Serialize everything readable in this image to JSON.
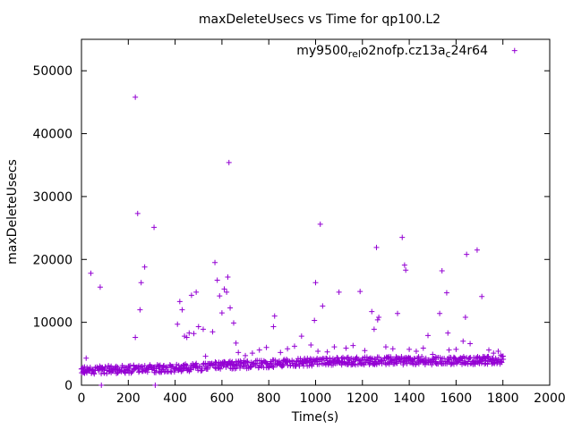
{
  "chart_data": {
    "type": "scatter",
    "title": "maxDeleteUsecs vs Time for qp100.L2",
    "xlabel": "Time(s)",
    "ylabel": "maxDeleteUsecs",
    "xlim": [
      0,
      2000
    ],
    "ylim": [
      0,
      55000
    ],
    "x_ticks": [
      0,
      200,
      400,
      600,
      800,
      1000,
      1200,
      1400,
      1600,
      1800,
      2000
    ],
    "y_ticks": [
      0,
      10000,
      20000,
      30000,
      40000,
      50000
    ],
    "x_tick_labels": [
      "0",
      "200",
      "400",
      "600",
      "800",
      "1000",
      "1200",
      "1400",
      "1600",
      "1800",
      "2000"
    ],
    "y_tick_labels": [
      "0",
      "10000",
      "20000",
      "30000",
      "40000",
      "50000"
    ],
    "grid": false,
    "legend_position": "top-right",
    "series_color": "#9400d3",
    "legend": {
      "label_main": "my9500",
      "sub1": "rel",
      "mid1": "o",
      "sub2": "2nofp.cz13a",
      "mid2": "c",
      "tail": "24r64",
      "marker": "+"
    },
    "series": [
      {
        "name": "my9500_rel_o2nofp.cz13a_c24r64",
        "points": [
          [
            10,
            2400
          ],
          [
            20,
            4300
          ],
          [
            30,
            2600
          ],
          [
            40,
            17800
          ],
          [
            50,
            2500
          ],
          [
            80,
            15600
          ],
          [
            85,
            0
          ],
          [
            90,
            2700
          ],
          [
            120,
            2300
          ],
          [
            150,
            2600
          ],
          [
            180,
            2800
          ],
          [
            200,
            3000
          ],
          [
            230,
            45800
          ],
          [
            230,
            7600
          ],
          [
            240,
            27300
          ],
          [
            250,
            12000
          ],
          [
            255,
            16300
          ],
          [
            270,
            18800
          ],
          [
            300,
            2900
          ],
          [
            310,
            25100
          ],
          [
            315,
            0
          ],
          [
            350,
            2800
          ],
          [
            380,
            3100
          ],
          [
            410,
            9700
          ],
          [
            420,
            13300
          ],
          [
            430,
            12000
          ],
          [
            440,
            7800
          ],
          [
            450,
            7600
          ],
          [
            460,
            8300
          ],
          [
            470,
            14300
          ],
          [
            480,
            8200
          ],
          [
            490,
            14800
          ],
          [
            500,
            9300
          ],
          [
            520,
            8900
          ],
          [
            530,
            4600
          ],
          [
            560,
            8500
          ],
          [
            570,
            19500
          ],
          [
            580,
            16700
          ],
          [
            590,
            14200
          ],
          [
            600,
            11500
          ],
          [
            610,
            15300
          ],
          [
            620,
            14800
          ],
          [
            625,
            17200
          ],
          [
            630,
            35400
          ],
          [
            635,
            12300
          ],
          [
            650,
            9900
          ],
          [
            660,
            6700
          ],
          [
            670,
            5200
          ],
          [
            700,
            4700
          ],
          [
            730,
            5100
          ],
          [
            760,
            5600
          ],
          [
            790,
            6000
          ],
          [
            820,
            9300
          ],
          [
            825,
            11000
          ],
          [
            850,
            5200
          ],
          [
            880,
            5800
          ],
          [
            910,
            6200
          ],
          [
            940,
            7800
          ],
          [
            980,
            6400
          ],
          [
            995,
            10300
          ],
          [
            1000,
            16300
          ],
          [
            1010,
            5400
          ],
          [
            1020,
            25600
          ],
          [
            1030,
            12600
          ],
          [
            1050,
            5300
          ],
          [
            1080,
            6100
          ],
          [
            1100,
            14800
          ],
          [
            1130,
            5900
          ],
          [
            1160,
            6300
          ],
          [
            1190,
            14900
          ],
          [
            1210,
            5500
          ],
          [
            1240,
            11700
          ],
          [
            1250,
            8900
          ],
          [
            1260,
            21900
          ],
          [
            1265,
            10400
          ],
          [
            1270,
            10800
          ],
          [
            1300,
            6100
          ],
          [
            1330,
            5800
          ],
          [
            1350,
            11400
          ],
          [
            1370,
            23500
          ],
          [
            1380,
            19100
          ],
          [
            1385,
            18300
          ],
          [
            1400,
            5700
          ],
          [
            1430,
            5400
          ],
          [
            1460,
            5900
          ],
          [
            1480,
            7900
          ],
          [
            1500,
            4900
          ],
          [
            1530,
            11400
          ],
          [
            1540,
            18200
          ],
          [
            1560,
            14700
          ],
          [
            1565,
            8300
          ],
          [
            1570,
            5600
          ],
          [
            1600,
            5700
          ],
          [
            1630,
            7000
          ],
          [
            1640,
            10800
          ],
          [
            1645,
            20800
          ],
          [
            1660,
            6600
          ],
          [
            1690,
            21500
          ],
          [
            1710,
            14100
          ],
          [
            1740,
            5600
          ],
          [
            1760,
            5100
          ],
          [
            1780,
            5400
          ],
          [
            1790,
            4800
          ],
          [
            1800,
            4600
          ]
        ]
      }
    ],
    "baseline_band": {
      "x_start": 0,
      "x_end": 1800,
      "x_step": 6,
      "x_jitter": 4,
      "trend": [
        [
          0,
          2400
        ],
        [
          300,
          2600
        ],
        [
          500,
          2900
        ],
        [
          700,
          3300
        ],
        [
          900,
          3600
        ],
        [
          1200,
          3900
        ],
        [
          1500,
          3900
        ],
        [
          1800,
          4000
        ]
      ],
      "spread": 1300
    },
    "legend_sample": [
      1850,
      53200
    ]
  }
}
